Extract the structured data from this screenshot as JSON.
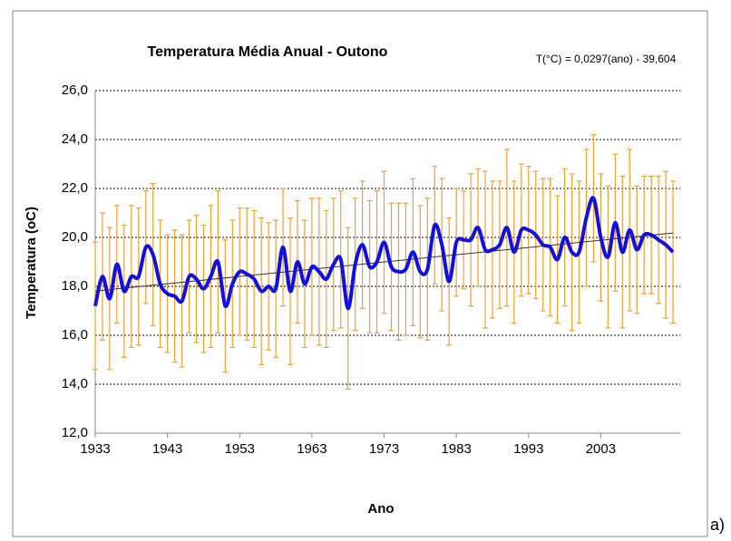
{
  "chart_data": {
    "type": "line",
    "title": "Temperatura Média Anual - Outono",
    "annotation": "T(°C) = 0,0297(ano)  - 39,604",
    "xlabel": "Ano",
    "ylabel": "Temperatura (oC)",
    "panel_label": "a)",
    "x": [
      1933,
      1934,
      1935,
      1936,
      1937,
      1938,
      1939,
      1940,
      1941,
      1942,
      1943,
      1944,
      1945,
      1946,
      1947,
      1948,
      1949,
      1950,
      1951,
      1952,
      1953,
      1954,
      1955,
      1956,
      1957,
      1958,
      1959,
      1960,
      1961,
      1962,
      1963,
      1964,
      1965,
      1966,
      1967,
      1968,
      1969,
      1970,
      1971,
      1972,
      1973,
      1974,
      1975,
      1976,
      1977,
      1978,
      1979,
      1980,
      1981,
      1982,
      1983,
      1984,
      1985,
      1986,
      1987,
      1988,
      1989,
      1990,
      1991,
      1992,
      1993,
      1994,
      1995,
      1996,
      1997,
      1998,
      1999,
      2000,
      2001,
      2002,
      2003,
      2004,
      2005,
      2006,
      2007,
      2008,
      2009,
      2010,
      2011,
      2012,
      2013
    ],
    "series": [
      {
        "name": "Temperatura",
        "color": "#1010e0",
        "values": [
          17.2,
          18.4,
          17.5,
          18.9,
          17.8,
          18.4,
          18.4,
          19.6,
          19.3,
          18.1,
          17.7,
          17.6,
          17.4,
          18.4,
          18.3,
          17.9,
          18.4,
          19.0,
          17.2,
          18.1,
          18.6,
          18.5,
          18.3,
          17.8,
          18.0,
          17.9,
          19.6,
          17.8,
          19.0,
          18.1,
          18.8,
          18.6,
          18.3,
          18.9,
          19.1,
          17.1,
          18.9,
          19.7,
          18.8,
          19.0,
          19.8,
          18.8,
          18.6,
          18.7,
          19.4,
          18.6,
          18.7,
          20.5,
          19.7,
          18.2,
          19.8,
          19.9,
          19.9,
          20.4,
          19.5,
          19.5,
          19.7,
          20.4,
          19.4,
          20.3,
          20.3,
          20.1,
          19.7,
          19.6,
          19.1,
          20.0,
          19.4,
          19.4,
          20.8,
          21.6,
          20.0,
          19.2,
          20.6,
          19.4,
          20.3,
          19.5,
          20.1,
          20.1,
          19.9,
          19.7,
          19.4
        ],
        "errors": [
          2.6,
          2.6,
          2.9,
          2.4,
          2.7,
          2.9,
          2.8,
          2.3,
          2.9,
          2.6,
          2.4,
          2.7,
          2.7,
          2.3,
          2.6,
          2.6,
          2.9,
          2.9,
          2.7,
          2.6,
          2.6,
          2.7,
          2.8,
          3.0,
          2.6,
          2.8,
          2.4,
          3.0,
          2.5,
          2.6,
          2.8,
          3.0,
          2.8,
          2.7,
          2.8,
          3.3,
          2.7,
          2.6,
          2.7,
          2.9,
          2.9,
          2.6,
          2.8,
          2.7,
          3.0,
          2.7,
          2.9,
          2.4,
          2.7,
          2.6,
          2.2,
          2.0,
          2.7,
          2.4,
          3.2,
          2.8,
          2.6,
          3.2,
          2.9,
          2.7,
          2.6,
          2.6,
          2.7,
          2.8,
          2.6,
          2.8,
          3.2,
          2.9,
          2.8,
          2.6,
          2.6,
          2.9,
          2.8,
          3.1,
          3.3,
          2.6,
          2.4,
          2.4,
          2.6,
          3.0,
          2.9
        ],
        "error_color": "#f0a030"
      }
    ],
    "trend": {
      "x": [
        1933,
        2013
      ],
      "values": [
        17.81,
        20.18
      ],
      "color": "#333333"
    },
    "xlim": [
      1933,
      2014
    ],
    "xticks": [
      1933,
      1943,
      1953,
      1963,
      1973,
      1983,
      1993,
      2003
    ],
    "ylim": [
      12,
      26
    ],
    "yticks": [
      {
        "value": 12,
        "label": "12,0"
      },
      {
        "value": 14,
        "label": "14,0"
      },
      {
        "value": 16,
        "label": "16,0"
      },
      {
        "value": 18,
        "label": "18,0"
      },
      {
        "value": 20,
        "label": "20,0"
      },
      {
        "value": 22,
        "label": "22,0"
      },
      {
        "value": 24,
        "label": "24,0"
      },
      {
        "value": 26,
        "label": "26,0"
      }
    ],
    "grid": true
  }
}
